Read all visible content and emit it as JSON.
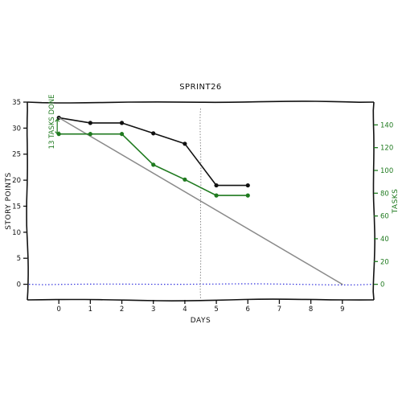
{
  "chart_data": {
    "type": "line",
    "title": "SPRINT26",
    "xlabel": "DAYS",
    "ylabel": "STORY POINTS",
    "ylabel_right": "TASKS",
    "xlim": [
      -1,
      10
    ],
    "ylim": [
      -3,
      35
    ],
    "ylim_right": [
      -13.7,
      160
    ],
    "x_ticks": [
      0,
      1,
      2,
      3,
      4,
      5,
      6,
      7,
      8,
      9
    ],
    "y_ticks": [
      0,
      5,
      10,
      15,
      20,
      25,
      30,
      35
    ],
    "y_ticks_right": [
      0,
      20,
      40,
      60,
      80,
      100,
      120,
      140
    ],
    "series": [
      {
        "axis": "left",
        "color": "#111111",
        "markers": true,
        "x": [
          0,
          1,
          2,
          3,
          4,
          5,
          6
        ],
        "y": [
          32,
          31,
          31,
          29,
          27,
          19,
          19
        ]
      },
      {
        "axis": "left",
        "color": "#8a8a8a",
        "markers": false,
        "x": [
          0,
          9
        ],
        "y": [
          32,
          0
        ]
      },
      {
        "axis": "right",
        "color": "#1f7a1f",
        "markers": true,
        "x": [
          0,
          1,
          2,
          3,
          4,
          5,
          6
        ],
        "y": [
          132,
          132,
          132,
          105,
          92,
          78,
          78
        ]
      }
    ],
    "annotations": [
      {
        "text": "13 TASKS DONE",
        "x": 0,
        "y_from": 145,
        "y_to": 132,
        "axis": "right",
        "color": "#1f7a1f"
      }
    ],
    "vline": {
      "x": 4.5,
      "color": "#888888"
    },
    "hline": {
      "y": 0,
      "color": "#3333dd"
    }
  }
}
